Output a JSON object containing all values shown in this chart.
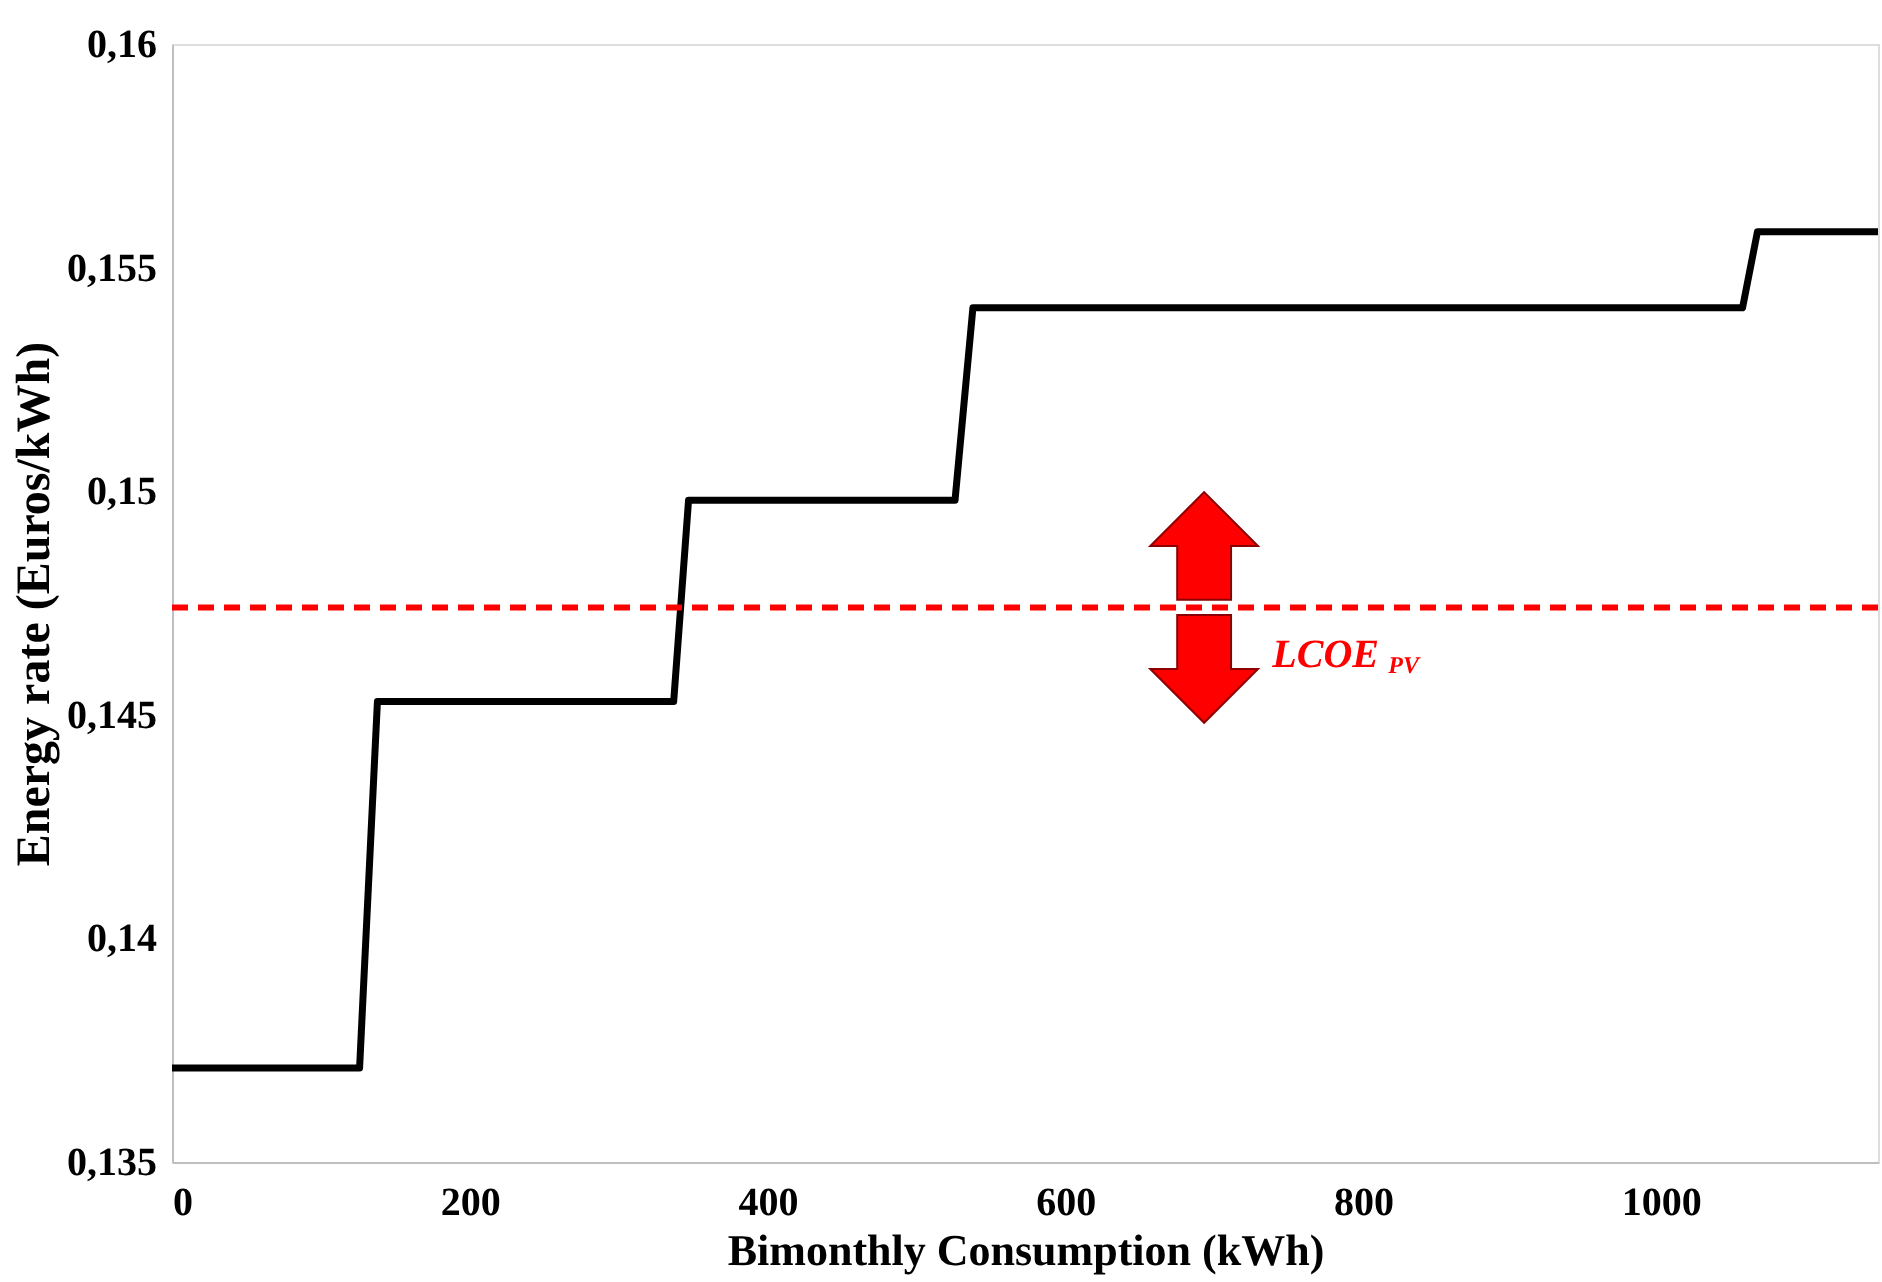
{
  "chart_data": {
    "type": "line",
    "xlabel": "Bimonthly Consumption (kWh)",
    "ylabel": "Energy rate (Euros/kWh)",
    "x": [
      0,
      126,
      138,
      337,
      347,
      526,
      538,
      1055,
      1065,
      1146
    ],
    "series": [
      {
        "color": "#000000",
        "values": [
          0.1371,
          0.1371,
          0.1453,
          0.1453,
          0.1498,
          0.1498,
          0.1541,
          0.1541,
          0.1558,
          0.1558
        ]
      }
    ],
    "xlim": [
      0,
      1146
    ],
    "xticks": [
      0,
      200,
      400,
      600,
      800,
      1000
    ],
    "ylim": [
      0.135,
      0.16
    ],
    "yticks": [
      {
        "value": 0.135,
        "label": "0,135"
      },
      {
        "value": 0.14,
        "label": "0,14"
      },
      {
        "value": 0.145,
        "label": "0,145"
      },
      {
        "value": 0.15,
        "label": "0,15"
      },
      {
        "value": 0.155,
        "label": "0,155"
      },
      {
        "value": 0.16,
        "label": "0,16"
      }
    ],
    "ref_lines": [
      {
        "axis": "y",
        "value": 0.1474,
        "label": "LCOE$_{PV}$",
        "color": "#ff0000",
        "line_style": "dashed"
      }
    ],
    "grid": false,
    "marker": "none",
    "line_style": "solid"
  }
}
